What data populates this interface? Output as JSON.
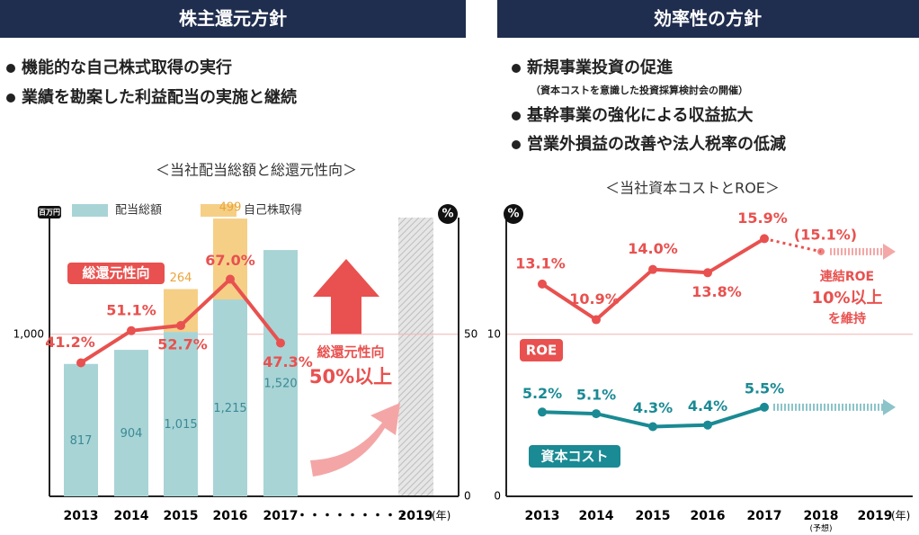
{
  "panels": [
    {
      "header": "株主還元方針",
      "bullets": [
        {
          "text": "機能的な自己株式取得の実行"
        },
        {
          "text": "業績を勘案した利益配当の実施と継続"
        }
      ]
    },
    {
      "header": "効率性の方針",
      "bullets": [
        {
          "text": "新規事業投資の促進",
          "note": "（資本コストを意識した投資採算検討会の開催）"
        },
        {
          "text": "基幹事業の強化による収益拡大"
        },
        {
          "text": "営業外損益の改善や法人税率の低減"
        }
      ]
    }
  ],
  "chart_data": [
    {
      "type": "bar_line",
      "title": "＜当社配当総額と総還元性向＞",
      "y_unit": "百万円",
      "y2_unit": "%",
      "x_unit": "(年)",
      "categories": [
        "2013",
        "2014",
        "2015",
        "2016",
        "2017",
        "・・・・・・・・・",
        "2019"
      ],
      "series": [
        {
          "name": "配当総額",
          "type": "bar",
          "color": "#a8d4d6",
          "values": [
            817,
            904,
            1015,
            1215,
            1520,
            null,
            null
          ],
          "value_labels": [
            "817",
            "904",
            "1,015",
            "1,215",
            "1,520",
            null,
            null
          ]
        },
        {
          "name": "自己株取得",
          "type": "bar",
          "color": "#f6cf86",
          "values": [
            null,
            null,
            264,
            499,
            null,
            null,
            null
          ]
        },
        {
          "name": "総還元性向",
          "type": "line",
          "axis": "y2",
          "color": "#e8514f",
          "values": [
            41.2,
            51.1,
            52.7,
            67.0,
            47.3,
            null,
            null
          ],
          "value_labels": [
            "41.2%",
            "51.1%",
            "52.7%",
            "67.0%",
            "47.3%",
            null,
            null
          ]
        }
      ],
      "ylim": [
        0,
        1720
      ],
      "yticks": [
        {
          "value": 1000,
          "label": "1,000"
        }
      ],
      "y2lim": [
        0,
        86
      ],
      "y2ticks": [
        0,
        50
      ],
      "grid": true,
      "annotations": [
        "総還元性向",
        "50%以上"
      ]
    },
    {
      "type": "line",
      "title": "＜当社資本コストとROE＞",
      "y_unit": "%",
      "x_unit": "(年)",
      "categories": [
        "2013",
        "2014",
        "2015",
        "2016",
        "2017",
        "2018",
        "2019"
      ],
      "category_notes": [
        null,
        null,
        null,
        null,
        null,
        "(予想)",
        null
      ],
      "series": [
        {
          "name": "ROE",
          "color": "#e8514f",
          "values": [
            13.1,
            10.9,
            14.0,
            13.8,
            15.9,
            15.1,
            null
          ],
          "value_labels": [
            "13.1%",
            "10.9%",
            "14.0%",
            "13.8%",
            "15.9%",
            "(15.1%)",
            null
          ]
        },
        {
          "name": "資本コスト",
          "color": "#1a8a94",
          "values": [
            5.2,
            5.1,
            4.3,
            4.4,
            5.5,
            null,
            null
          ],
          "value_labels": [
            "5.2%",
            "5.1%",
            "4.3%",
            "4.4%",
            "5.5%",
            null,
            null
          ]
        }
      ],
      "ylim": [
        0,
        17.2
      ],
      "yticks": [
        0,
        10
      ],
      "grid": true,
      "annotations": [
        "連結ROE",
        "10%以上",
        "を維持"
      ]
    }
  ]
}
